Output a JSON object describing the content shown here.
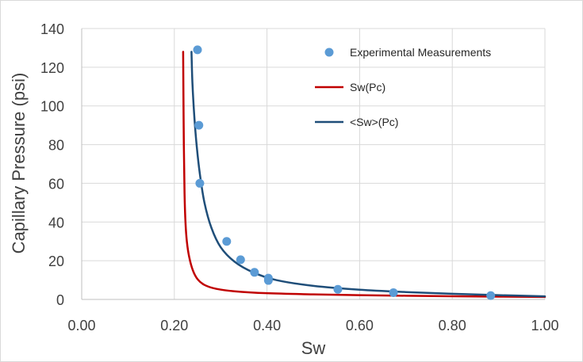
{
  "chart_data": {
    "type": "scatter",
    "xlabel": "Sw",
    "ylabel": "Capillary Pressure (psi)",
    "xlim": [
      0,
      1
    ],
    "ylim": [
      0,
      140
    ],
    "x_ticks": [
      "0.00",
      "0.20",
      "0.40",
      "0.60",
      "0.80",
      "1.00"
    ],
    "y_ticks": [
      "0",
      "20",
      "40",
      "60",
      "80",
      "100",
      "120",
      "140"
    ],
    "grid": true,
    "legend_position": "top-right",
    "series": [
      {
        "name": "Experimental Measurements",
        "kind": "scatter",
        "color": "#5b9bd5",
        "points": [
          [
            0.25,
            129
          ],
          [
            0.253,
            90
          ],
          [
            0.255,
            60
          ],
          [
            0.313,
            30
          ],
          [
            0.343,
            20.5
          ],
          [
            0.373,
            14
          ],
          [
            0.403,
            11
          ],
          [
            0.403,
            9.8
          ],
          [
            0.553,
            5.2
          ],
          [
            0.673,
            3.5
          ],
          [
            0.883,
            2
          ]
        ]
      },
      {
        "name": "Sw(Pc)",
        "kind": "line",
        "color": "#c00000",
        "points": [
          [
            0.219,
            128
          ],
          [
            0.2195,
            110
          ],
          [
            0.2205,
            80
          ],
          [
            0.222,
            55
          ],
          [
            0.224,
            40
          ],
          [
            0.227,
            30
          ],
          [
            0.232,
            22
          ],
          [
            0.24,
            15
          ],
          [
            0.25,
            10.5
          ],
          [
            0.265,
            7.5
          ],
          [
            0.29,
            5.5
          ],
          [
            0.33,
            4.2
          ],
          [
            0.4,
            3.2
          ],
          [
            0.5,
            2.6
          ],
          [
            0.6,
            2.2
          ],
          [
            0.7,
            1.9
          ],
          [
            0.8,
            1.65
          ],
          [
            0.9,
            1.45
          ],
          [
            1.0,
            1.3
          ]
        ]
      },
      {
        "name": "<Sw>(Pc)",
        "kind": "line",
        "color": "#1f4e79",
        "points": [
          [
            0.237,
            128
          ],
          [
            0.239,
            112
          ],
          [
            0.243,
            95
          ],
          [
            0.248,
            80
          ],
          [
            0.255,
            65
          ],
          [
            0.265,
            50
          ],
          [
            0.28,
            37
          ],
          [
            0.3,
            27
          ],
          [
            0.33,
            19.5
          ],
          [
            0.37,
            14
          ],
          [
            0.42,
            10
          ],
          [
            0.5,
            7
          ],
          [
            0.6,
            5
          ],
          [
            0.7,
            3.8
          ],
          [
            0.8,
            2.9
          ],
          [
            0.9,
            2.2
          ],
          [
            1.0,
            1.6
          ]
        ]
      }
    ]
  }
}
